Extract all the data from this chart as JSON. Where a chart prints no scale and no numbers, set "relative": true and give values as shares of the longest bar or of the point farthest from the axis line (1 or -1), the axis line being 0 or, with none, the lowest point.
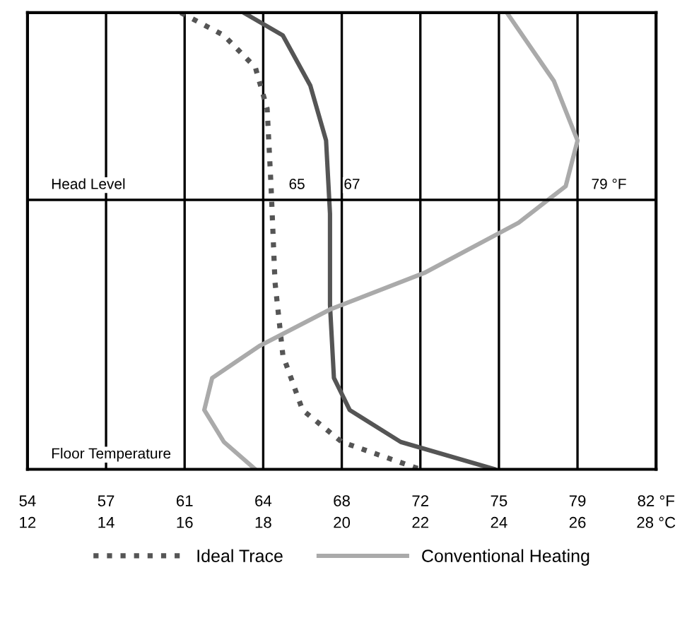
{
  "chart_data": {
    "type": "line",
    "relative": true,
    "xlim": [
      12,
      28
    ],
    "xticks": [
      12,
      14,
      16,
      18,
      20,
      22,
      24,
      26,
      {
        "value": 28,
        "label": "28 °C"
      }
    ],
    "x2lim": [
      53.6,
      82.4
    ],
    "x2ticks": [
      {
        "value": 53.6,
        "label": "54"
      },
      {
        "value": 57.2,
        "label": "57"
      },
      {
        "value": 60.8,
        "label": "61"
      },
      {
        "value": 64.4,
        "label": "64"
      },
      68,
      {
        "value": 71.6,
        "label": "72"
      },
      {
        "value": 75.2,
        "label": "75"
      },
      {
        "value": 78.8,
        "label": "79"
      },
      {
        "value": 82.4,
        "label": "82 °F"
      }
    ],
    "grid": "x",
    "legend": "bottom",
    "series": [
      {
        "name": "Ideal Trace",
        "color": "#555555",
        "line_style": "dotted",
        "x": [
          15.9,
          17.0,
          17.8,
          18.1,
          18.2,
          18.3,
          18.5,
          19.0,
          20.0,
          22.0
        ],
        "values": [
          1.0,
          0.95,
          0.88,
          0.79,
          0.62,
          0.41,
          0.25,
          0.13,
          0.06,
          0.0
        ]
      },
      {
        "color": "#555555",
        "line_style": "solid",
        "x": [
          17.5,
          18.5,
          19.2,
          19.6,
          19.7,
          19.7,
          19.8,
          20.2,
          21.5,
          23.9
        ],
        "values": [
          1.0,
          0.95,
          0.84,
          0.72,
          0.56,
          0.36,
          0.2,
          0.13,
          0.06,
          0.0
        ]
      },
      {
        "name": "Conventional Heating",
        "color": "#aaaaaa",
        "line_style": "solid",
        "x": [
          24.2,
          25.4,
          26.0,
          25.7,
          24.5,
          22.1,
          19.7,
          17.9,
          16.7,
          16.5,
          17.0,
          17.8
        ],
        "values": [
          1.0,
          0.85,
          0.72,
          0.62,
          0.54,
          0.43,
          0.35,
          0.27,
          0.2,
          0.13,
          0.06,
          0.0
        ]
      }
    ],
    "ref_lines": [
      {
        "axis": "y",
        "value": 0.59,
        "label": "Head Level",
        "color": "#000000"
      }
    ],
    "annotations": [
      "Floor Temperature",
      {
        "text": "65",
        "x": 18.3,
        "y": 0.59
      },
      {
        "text": "67",
        "x": 19.7,
        "y": 0.59
      },
      {
        "text": "79 °F",
        "x": 26.0,
        "y": 0.59
      }
    ]
  }
}
